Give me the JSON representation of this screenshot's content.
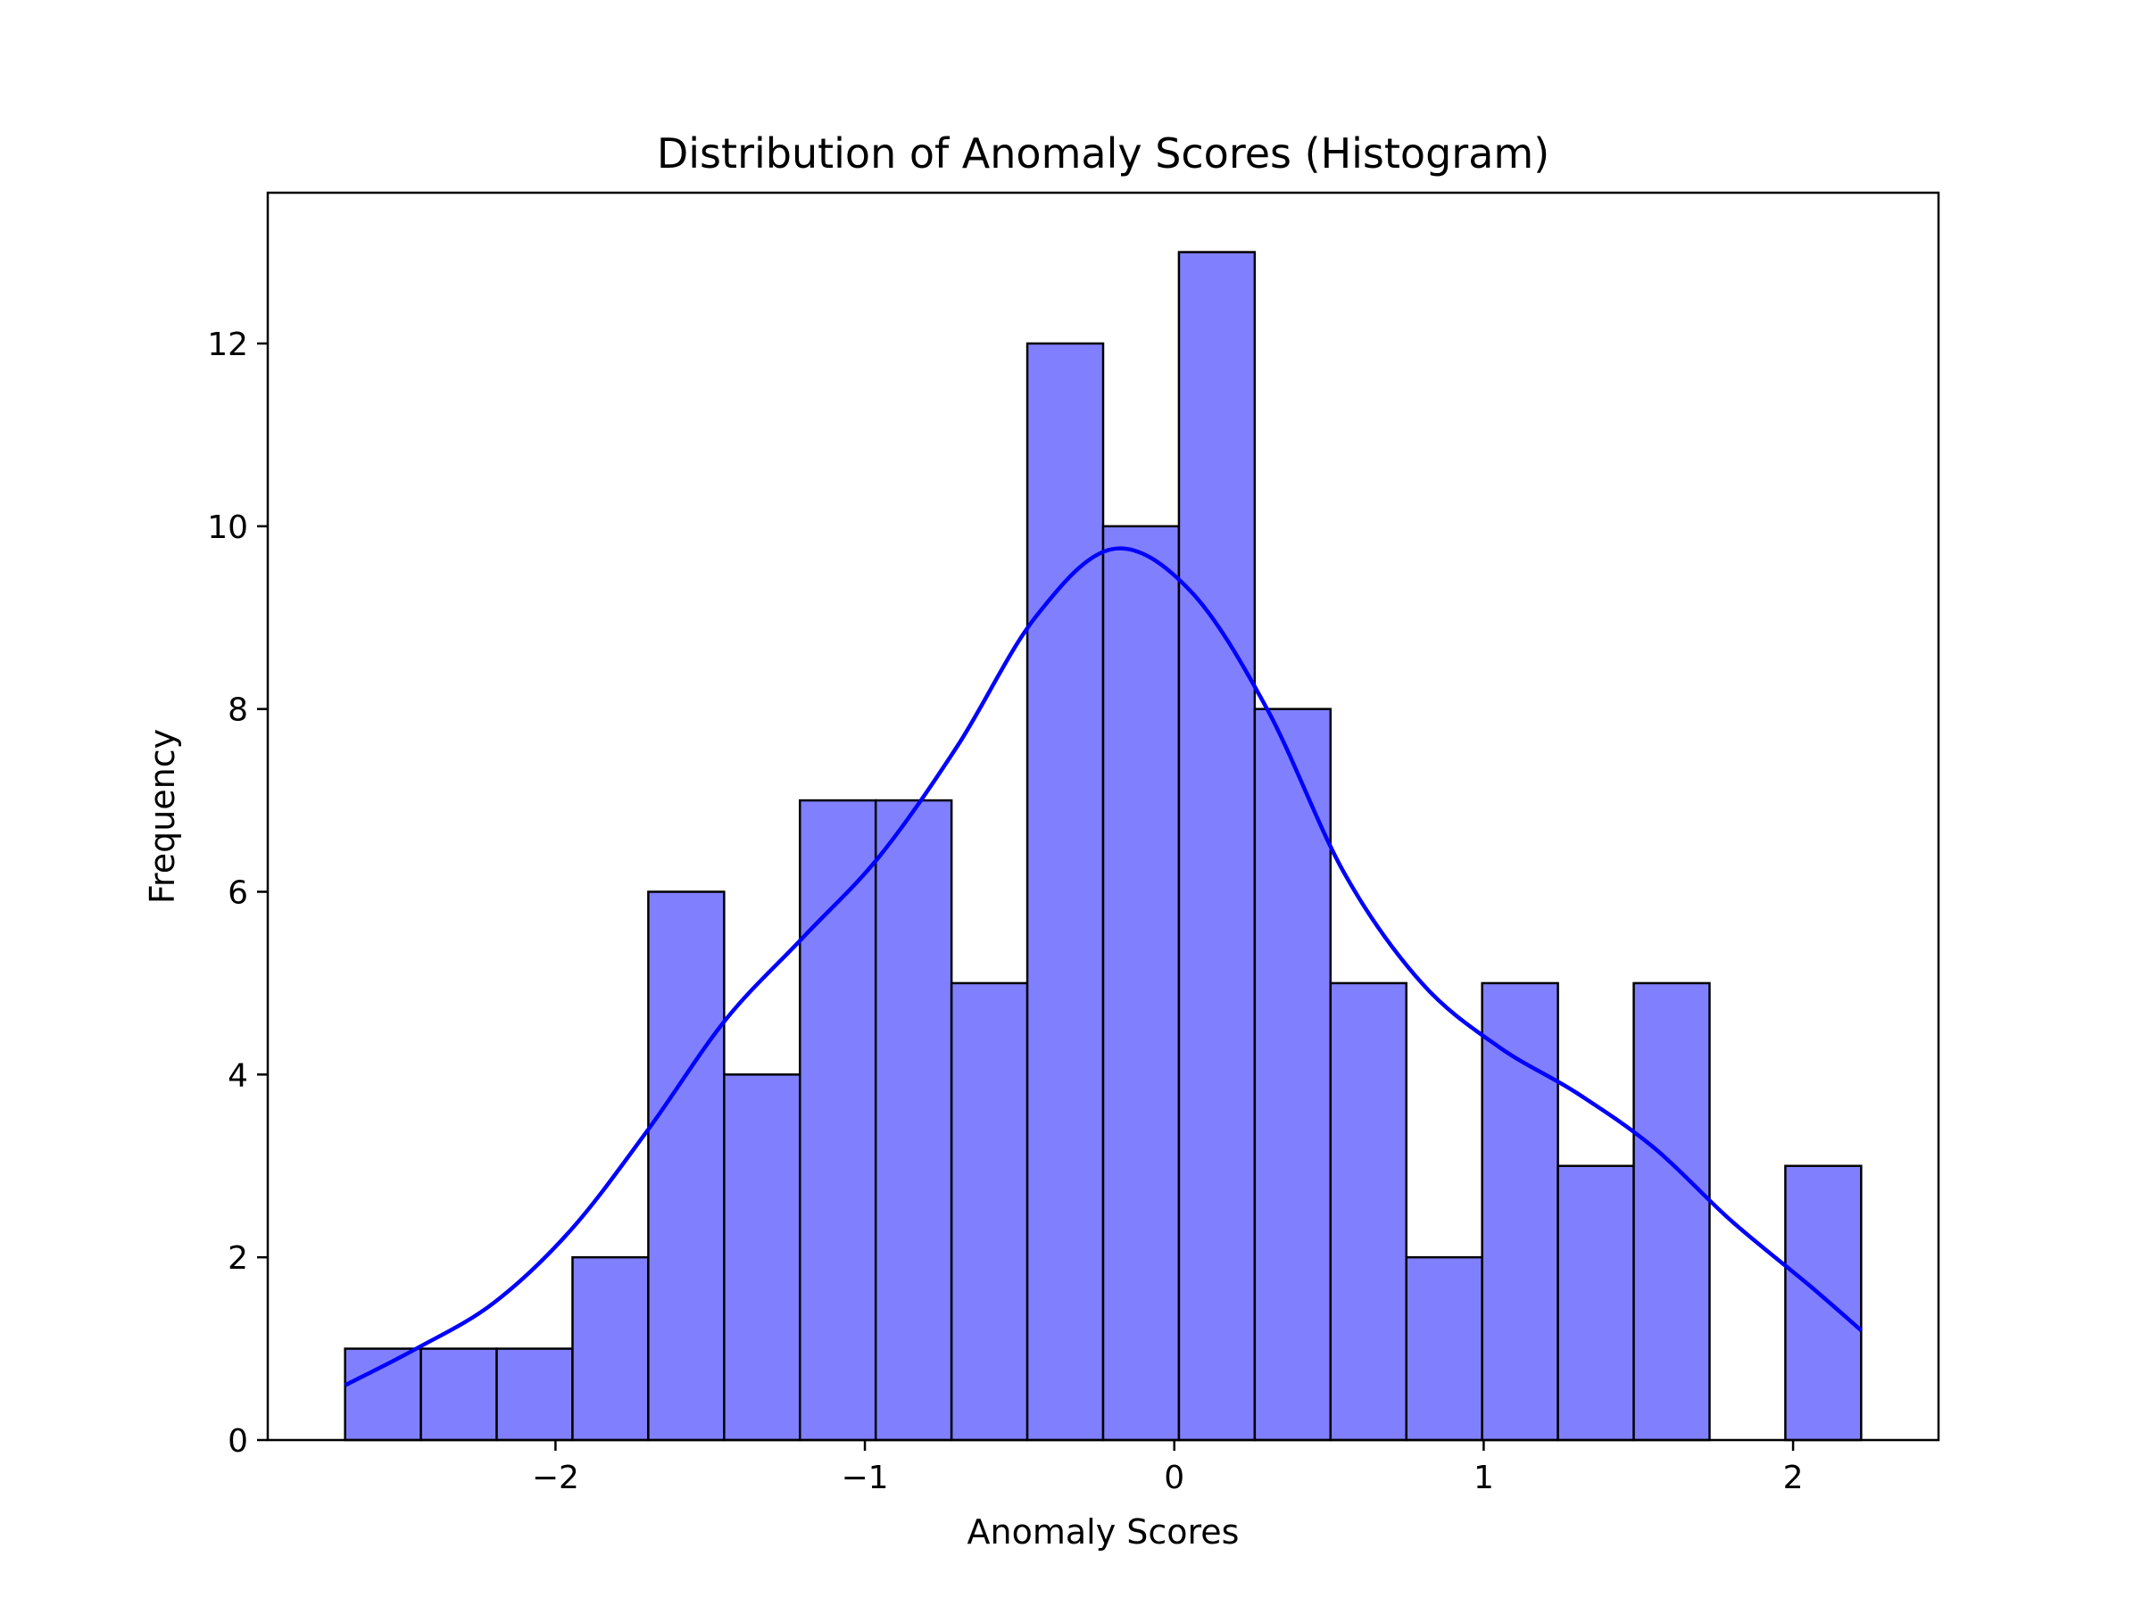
{
  "chart_data": {
    "type": "bar",
    "title": "Distribution of Anomaly Scores (Histogram)",
    "xlabel": "Anomaly Scores",
    "ylabel": "Frequency",
    "bin_edges": [
      -2.68,
      -2.435,
      -2.19,
      -1.945,
      -1.7,
      -1.455,
      -1.21,
      -0.965,
      -0.72,
      -0.475,
      -0.23,
      0.015,
      0.26,
      0.505,
      0.75,
      0.995,
      1.24,
      1.485,
      1.73,
      1.975,
      2.22
    ],
    "values": [
      1,
      1,
      1,
      2,
      6,
      4,
      7,
      7,
      5,
      12,
      10,
      13,
      8,
      5,
      2,
      5,
      3,
      5,
      0,
      3
    ],
    "kde": {
      "x": [
        -2.68,
        -2.45,
        -2.2,
        -1.95,
        -1.7,
        -1.45,
        -1.2,
        -0.95,
        -0.7,
        -0.45,
        -0.2,
        0.05,
        0.3,
        0.55,
        0.8,
        1.05,
        1.3,
        1.55,
        1.8,
        2.05,
        2.22
      ],
      "y": [
        0.6,
        1.0,
        1.5,
        2.3,
        3.4,
        4.6,
        5.5,
        6.4,
        7.6,
        9.0,
        9.75,
        9.3,
        8.0,
        6.2,
        5.0,
        4.3,
        3.8,
        3.2,
        2.4,
        1.7,
        1.2
      ]
    },
    "xlim": [
      -2.93,
      2.47
    ],
    "ylim": [
      0,
      13.65
    ],
    "xticks": [
      -2,
      -1,
      0,
      1,
      2
    ],
    "xtick_labels": [
      "−2",
      "−1",
      "0",
      "1",
      "2"
    ],
    "yticks": [
      0,
      2,
      4,
      6,
      8,
      10,
      12
    ],
    "bar_color": "#8080ff",
    "bar_edge_color": "#000000",
    "kde_color": "#0000ff",
    "grid": false,
    "legend": "none"
  }
}
